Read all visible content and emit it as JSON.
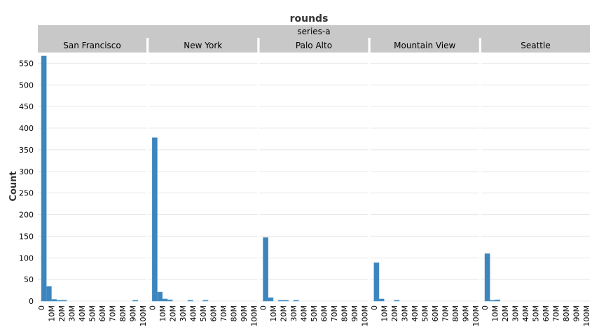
{
  "chart_data": {
    "type": "bar",
    "title": "rounds",
    "subtitle": "series-a",
    "ylabel": "Count",
    "xlabel": "",
    "ylim": [
      0,
      575
    ],
    "yticks": [
      0,
      50,
      100,
      150,
      200,
      250,
      300,
      350,
      400,
      450,
      500,
      550
    ],
    "xticks": [
      "0",
      "10M",
      "20M",
      "30M",
      "40M",
      "50M",
      "60M",
      "70M",
      "80M",
      "90M",
      "100M"
    ],
    "bin_width": 5000000,
    "x_range": [
      0,
      100000000
    ],
    "grid": true,
    "bar_color": "#3d85bd",
    "strip_color": "#c8c8c8",
    "facets": [
      {
        "name": "San Francisco",
        "bins": [
          {
            "x0": 0,
            "x1": 5000000,
            "count": 567
          },
          {
            "x0": 5000000,
            "x1": 10000000,
            "count": 34
          },
          {
            "x0": 10000000,
            "x1": 15000000,
            "count": 4
          },
          {
            "x0": 15000000,
            "x1": 20000000,
            "count": 2
          },
          {
            "x0": 20000000,
            "x1": 25000000,
            "count": 2
          },
          {
            "x0": 90000000,
            "x1": 95000000,
            "count": 2
          }
        ]
      },
      {
        "name": "New York",
        "bins": [
          {
            "x0": 0,
            "x1": 5000000,
            "count": 378
          },
          {
            "x0": 5000000,
            "x1": 10000000,
            "count": 21
          },
          {
            "x0": 10000000,
            "x1": 15000000,
            "count": 5
          },
          {
            "x0": 15000000,
            "x1": 20000000,
            "count": 3
          },
          {
            "x0": 35000000,
            "x1": 40000000,
            "count": 2
          },
          {
            "x0": 50000000,
            "x1": 55000000,
            "count": 2
          }
        ]
      },
      {
        "name": "Palo Alto",
        "bins": [
          {
            "x0": 0,
            "x1": 5000000,
            "count": 147
          },
          {
            "x0": 5000000,
            "x1": 10000000,
            "count": 8
          },
          {
            "x0": 15000000,
            "x1": 20000000,
            "count": 2
          },
          {
            "x0": 20000000,
            "x1": 25000000,
            "count": 2
          },
          {
            "x0": 30000000,
            "x1": 35000000,
            "count": 2
          }
        ]
      },
      {
        "name": "Mountain View",
        "bins": [
          {
            "x0": 0,
            "x1": 5000000,
            "count": 89
          },
          {
            "x0": 5000000,
            "x1": 10000000,
            "count": 5
          },
          {
            "x0": 20000000,
            "x1": 25000000,
            "count": 2
          }
        ]
      },
      {
        "name": "Seattle",
        "bins": [
          {
            "x0": 0,
            "x1": 5000000,
            "count": 110
          },
          {
            "x0": 5000000,
            "x1": 10000000,
            "count": 2
          },
          {
            "x0": 10000000,
            "x1": 15000000,
            "count": 3
          }
        ]
      }
    ]
  }
}
